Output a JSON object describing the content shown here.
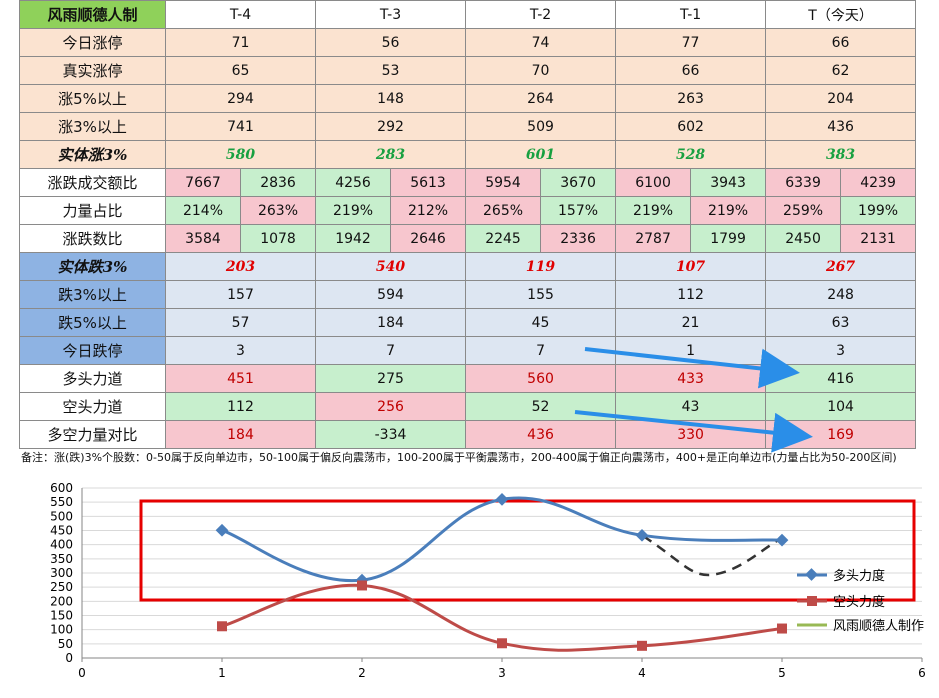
{
  "header": {
    "corner": "风雨顺德人制",
    "columns": [
      "T-4",
      "T-3",
      "T-2",
      "T-1",
      "T（今天）"
    ]
  },
  "rows": {
    "limit_up": {
      "label": "今日涨停",
      "values": [
        "71",
        "56",
        "74",
        "77",
        "66"
      ]
    },
    "real_limit_up": {
      "label": "真实涨停",
      "values": [
        "65",
        "53",
        "70",
        "66",
        "62"
      ]
    },
    "up5": {
      "label": "涨5%以上",
      "values": [
        "294",
        "148",
        "264",
        "263",
        "204"
      ]
    },
    "up3": {
      "label": "涨3%以上",
      "values": [
        "741",
        "292",
        "509",
        "602",
        "436"
      ]
    },
    "body_up3": {
      "label": "实体涨3%",
      "values": [
        "580",
        "283",
        "601",
        "528",
        "383"
      ]
    },
    "turnover_ratio": {
      "label": "涨跌成交额比",
      "values": [
        [
          "7667",
          "2836"
        ],
        [
          "4256",
          "5613"
        ],
        [
          "5954",
          "3670"
        ],
        [
          "6100",
          "3943"
        ],
        [
          "6339",
          "4239"
        ]
      ]
    },
    "force_ratio": {
      "label": "力量占比",
      "values": [
        [
          "214%",
          "263%"
        ],
        [
          "219%",
          "212%"
        ],
        [
          "265%",
          "157%"
        ],
        [
          "219%",
          "219%"
        ],
        [
          "259%",
          "199%"
        ]
      ]
    },
    "count_ratio": {
      "label": "涨跌数比",
      "values": [
        [
          "3584",
          "1078"
        ],
        [
          "1942",
          "2646"
        ],
        [
          "2245",
          "2336"
        ],
        [
          "2787",
          "1799"
        ],
        [
          "2450",
          "2131"
        ]
      ]
    },
    "body_down3": {
      "label": "实体跌3%",
      "values": [
        "203",
        "540",
        "119",
        "107",
        "267"
      ]
    },
    "down3": {
      "label": "跌3%以上",
      "values": [
        "157",
        "594",
        "155",
        "112",
        "248"
      ]
    },
    "down5": {
      "label": "跌5%以上",
      "values": [
        "57",
        "184",
        "45",
        "21",
        "63"
      ]
    },
    "limit_down": {
      "label": "今日跌停",
      "values": [
        "3",
        "7",
        "7",
        "1",
        "3"
      ]
    },
    "bull_force": {
      "label": "多头力道",
      "values": [
        "451",
        "275",
        "560",
        "433",
        "416"
      ]
    },
    "bear_force": {
      "label": "空头力道",
      "values": [
        "112",
        "256",
        "52",
        "43",
        "104"
      ]
    },
    "bull_bear_diff": {
      "label": "多空力量对比",
      "values": [
        "184",
        "-334",
        "436",
        "330",
        "169"
      ]
    }
  },
  "note": "备注：涨(跌)3%个股数：0-50属于反向单边市，50-100属于偏反向震荡市，100-200属于平衡震荡市，200-400属于偏正向震荡市，400+是正向单边市(力量占比为50-200区间)",
  "watermark": "风雨顺德人制",
  "colors": {
    "bull": "#4a7ebb",
    "bear": "#be4b48",
    "author": "#98b954",
    "box": "#e60000",
    "arrow": "#2a8ee8"
  },
  "chart_data": {
    "type": "scatter",
    "series": [
      {
        "name": "多头力度",
        "x": [
          1,
          2,
          3,
          4,
          5
        ],
        "y": [
          451,
          275,
          560,
          433,
          416
        ],
        "marker": "diamond",
        "smooth": true
      },
      {
        "name": "空头力度",
        "x": [
          1,
          2,
          3,
          4,
          5
        ],
        "y": [
          112,
          256,
          52,
          43,
          104
        ],
        "marker": "square",
        "smooth": true
      },
      {
        "name": "风雨顺德人制作",
        "x": [],
        "y": []
      }
    ],
    "xlim": [
      0,
      6
    ],
    "ylim": [
      0,
      600
    ],
    "xticks": [
      "0",
      "1",
      "2",
      "3",
      "4",
      "5",
      "6"
    ],
    "yticks": [
      "0",
      "50",
      "100",
      "150",
      "200",
      "250",
      "300",
      "350",
      "400",
      "450",
      "500",
      "550",
      "600"
    ],
    "grid": "horizontal",
    "legend": "right"
  }
}
